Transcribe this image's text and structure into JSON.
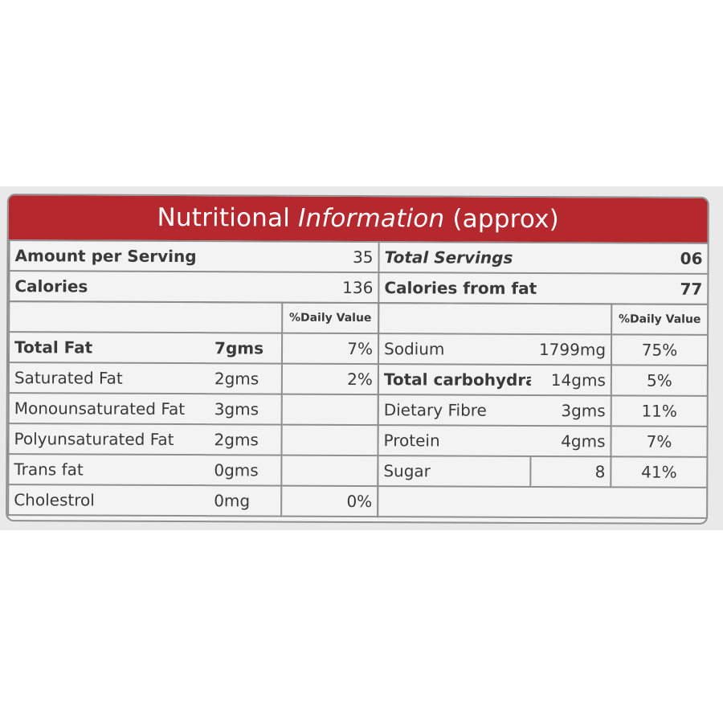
{
  "title": {
    "part1": "Nutritional ",
    "part2": "Information",
    "part3": " (approx)"
  },
  "summary": {
    "amount_label": "Amount per Serving",
    "amount_value": "35",
    "servings_label": "Total Servings",
    "servings_value": "06",
    "calories_label": "Calories",
    "calories_value": "136",
    "calories_fat_label": "Calories from fat",
    "calories_fat_value": "77"
  },
  "left": {
    "dv_header": "%Daily Value",
    "rows": [
      {
        "name": "Total Fat",
        "amount": "7gms",
        "dv": "7%"
      },
      {
        "name": "Saturated Fat",
        "amount": "2gms",
        "dv": "2%"
      },
      {
        "name": "Monounsaturated Fat",
        "amount": "3gms",
        "dv": ""
      },
      {
        "name": "Polyunsaturated Fat",
        "amount": "2gms",
        "dv": ""
      },
      {
        "name": "Trans fat",
        "amount": "0gms",
        "dv": ""
      },
      {
        "name": "Cholestrol",
        "amount": "0mg",
        "dv": "0%"
      }
    ]
  },
  "right": {
    "dv_header": "%Daily Value",
    "rows": [
      {
        "name": "Sodium",
        "amount": "1799mg",
        "dv": "75%"
      },
      {
        "name": "Total carbohydrate",
        "amount": "14gms",
        "dv": "5%"
      },
      {
        "name": "Dietary Fibre",
        "amount": "3gms",
        "dv": "11%"
      },
      {
        "name": "Protein",
        "amount": "4gms",
        "dv": "7%"
      },
      {
        "name": "Sugar",
        "amount": "8",
        "dv": "41%"
      }
    ]
  },
  "colors": {
    "title_band": "#b5282e",
    "label_bg": "#f3f3f4",
    "border": "#8f8f90",
    "text": "#3a3a3a"
  }
}
